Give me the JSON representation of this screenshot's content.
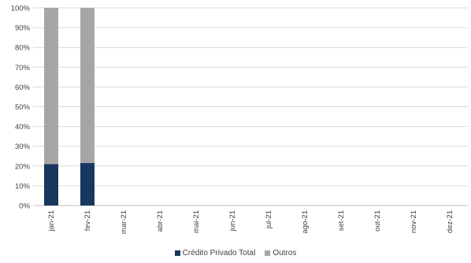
{
  "chart_data": {
    "type": "bar",
    "stacked": true,
    "categories": [
      "jan-21",
      "fev-21",
      "mar-21",
      "abr-21",
      "mai-21",
      "jun-21",
      "jul-21",
      "ago-21",
      "set-21",
      "out-21",
      "nov-21",
      "dez-21"
    ],
    "series": [
      {
        "name": "Crédito Privado Total",
        "color": "#17375e",
        "values": [
          21,
          21.5,
          null,
          null,
          null,
          null,
          null,
          null,
          null,
          null,
          null,
          null
        ]
      },
      {
        "name": "Outros",
        "color": "#a6a6a6",
        "values": [
          79,
          78.5,
          null,
          null,
          null,
          null,
          null,
          null,
          null,
          null,
          null,
          null
        ]
      }
    ],
    "y_ticks": [
      "0%",
      "10%",
      "20%",
      "30%",
      "40%",
      "50%",
      "60%",
      "70%",
      "80%",
      "90%",
      "100%"
    ],
    "ylim": [
      0,
      100
    ],
    "grid": true,
    "legend_position": "bottom"
  }
}
